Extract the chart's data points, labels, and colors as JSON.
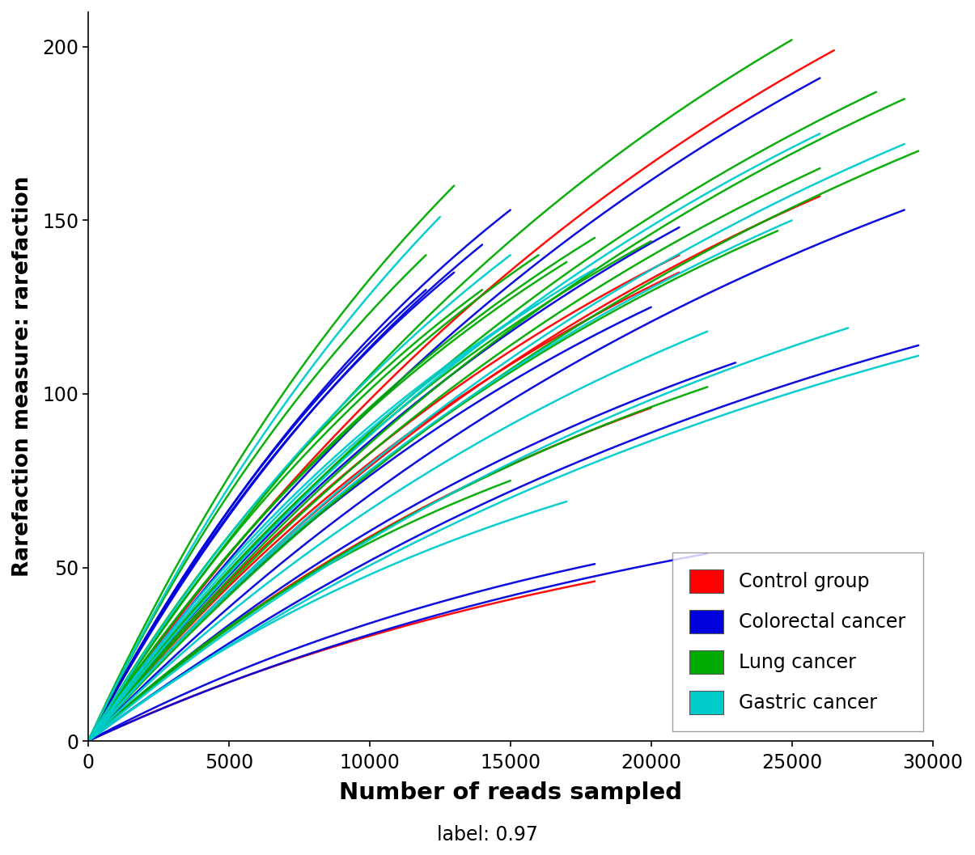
{
  "xlabel": "Number of reads sampled",
  "ylabel": "Rarefaction measure: rarefaction",
  "label_text": "label: 0.97",
  "xlim": [
    0,
    30000
  ],
  "ylim": [
    0,
    210
  ],
  "xticks": [
    0,
    5000,
    10000,
    15000,
    20000,
    25000,
    30000
  ],
  "yticks": [
    0,
    50,
    100,
    150,
    200
  ],
  "legend_labels": [
    "Control group",
    "Colorectal cancer",
    "Lung cancer",
    "Gastric cancer"
  ],
  "legend_colors": [
    "#FF0000",
    "#0000DD",
    "#00AA00",
    "#00CCCC"
  ],
  "background_color": "#FFFFFF",
  "lw": 1.8,
  "groups": [
    {
      "name": "control",
      "color": "#FF0000",
      "curves": [
        {
          "x_end": 18000,
          "y_end": 46,
          "S": 80
        },
        {
          "x_end": 20000,
          "y_end": 96,
          "S": 160
        },
        {
          "x_end": 26000,
          "y_end": 157,
          "S": 250
        },
        {
          "x_end": 26500,
          "y_end": 199,
          "S": 320
        },
        {
          "x_end": 21000,
          "y_end": 135,
          "S": 220
        },
        {
          "x_end": 21000,
          "y_end": 140,
          "S": 230
        }
      ]
    },
    {
      "name": "colorectal",
      "color": "#0000DD",
      "curves": [
        {
          "x_end": 22000,
          "y_end": 54,
          "S": 90
        },
        {
          "x_end": 29500,
          "y_end": 114,
          "S": 180
        },
        {
          "x_end": 29000,
          "y_end": 153,
          "S": 240
        },
        {
          "x_end": 26000,
          "y_end": 191,
          "S": 310
        },
        {
          "x_end": 23000,
          "y_end": 109,
          "S": 175
        },
        {
          "x_end": 18000,
          "y_end": 51,
          "S": 85
        },
        {
          "x_end": 15000,
          "y_end": 153,
          "S": 260
        },
        {
          "x_end": 13000,
          "y_end": 135,
          "S": 240
        },
        {
          "x_end": 14000,
          "y_end": 143,
          "S": 255
        },
        {
          "x_end": 12000,
          "y_end": 130,
          "S": 240
        },
        {
          "x_end": 20000,
          "y_end": 125,
          "S": 210
        },
        {
          "x_end": 21000,
          "y_end": 148,
          "S": 255
        }
      ]
    },
    {
      "name": "lung",
      "color": "#00AA00",
      "curves": [
        {
          "x_end": 29000,
          "y_end": 185,
          "S": 290
        },
        {
          "x_end": 28000,
          "y_end": 187,
          "S": 295
        },
        {
          "x_end": 29500,
          "y_end": 170,
          "S": 270
        },
        {
          "x_end": 25000,
          "y_end": 202,
          "S": 320
        },
        {
          "x_end": 26000,
          "y_end": 165,
          "S": 265
        },
        {
          "x_end": 24500,
          "y_end": 147,
          "S": 235
        },
        {
          "x_end": 22000,
          "y_end": 102,
          "S": 165
        },
        {
          "x_end": 15000,
          "y_end": 75,
          "S": 125
        },
        {
          "x_end": 16000,
          "y_end": 140,
          "S": 240
        },
        {
          "x_end": 17000,
          "y_end": 138,
          "S": 235
        },
        {
          "x_end": 20000,
          "y_end": 144,
          "S": 240
        },
        {
          "x_end": 14000,
          "y_end": 130,
          "S": 230
        },
        {
          "x_end": 18000,
          "y_end": 145,
          "S": 245
        },
        {
          "x_end": 12000,
          "y_end": 140,
          "S": 265
        },
        {
          "x_end": 13000,
          "y_end": 160,
          "S": 300
        }
      ]
    },
    {
      "name": "gastric",
      "color": "#00CCCC",
      "curves": [
        {
          "x_end": 26000,
          "y_end": 175,
          "S": 280
        },
        {
          "x_end": 29000,
          "y_end": 172,
          "S": 270
        },
        {
          "x_end": 25000,
          "y_end": 150,
          "S": 240
        },
        {
          "x_end": 29500,
          "y_end": 111,
          "S": 175
        },
        {
          "x_end": 27000,
          "y_end": 119,
          "S": 190
        },
        {
          "x_end": 22000,
          "y_end": 118,
          "S": 200
        },
        {
          "x_end": 17000,
          "y_end": 69,
          "S": 115
        },
        {
          "x_end": 18000,
          "y_end": 136,
          "S": 235
        },
        {
          "x_end": 16000,
          "y_end": 126,
          "S": 220
        },
        {
          "x_end": 15000,
          "y_end": 140,
          "S": 260
        },
        {
          "x_end": 12500,
          "y_end": 151,
          "S": 300
        }
      ]
    }
  ]
}
